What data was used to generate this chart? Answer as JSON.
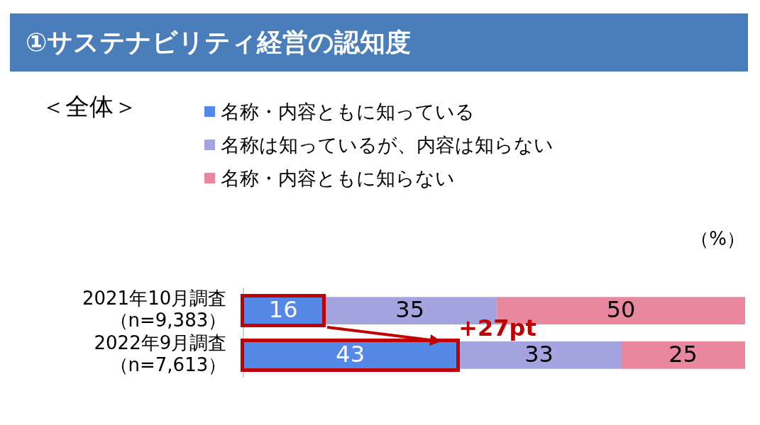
{
  "chart_data": {
    "type": "bar",
    "orientation": "horizontal",
    "stacked": true,
    "title": "①サステナビリティ経営の認知度",
    "subtitle": "＜全体＞",
    "categories": [
      "2021年10月調査（n=9,383）",
      "2022年9月調査（n=7,613）"
    ],
    "series": [
      {
        "name": "名称・内容ともに知っている",
        "color": "#5589e8",
        "values": [
          16,
          43
        ]
      },
      {
        "name": "名称は知っているが、内容は知らない",
        "color": "#a4a4e0",
        "values": [
          35,
          33
        ]
      },
      {
        "name": "名称・内容ともに知らない",
        "color": "#e8879e",
        "values": [
          50,
          25
        ]
      }
    ],
    "data_labels": true,
    "legend": "top",
    "grid": false,
    "annotations": [
      "（%）",
      "+27pt"
    ]
  }
}
